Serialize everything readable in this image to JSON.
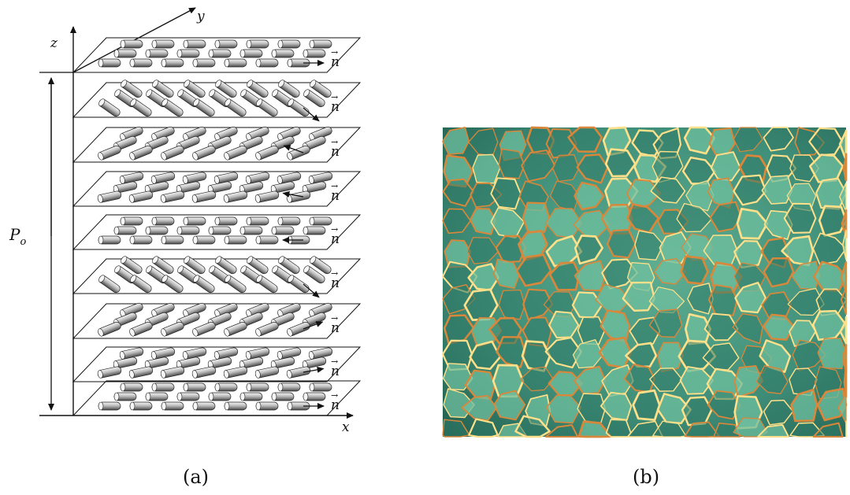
{
  "figure": {
    "panel_a": {
      "caption": "(a)",
      "axis_x": "x",
      "axis_y": "y",
      "axis_z": "z",
      "pitch_label": "P",
      "pitch_subscript": "o",
      "director_label": "n",
      "director_accent": "→",
      "layer_count": 9
    },
    "panel_b": {
      "caption": "(b)",
      "image_kind": "micrograph",
      "colors": {
        "domain_light": "#6fbf9f",
        "domain_dark": "#2f7a68",
        "boundary_bright": "#ffe08a",
        "boundary_warm": "#d9873a"
      }
    },
    "colors": {
      "line": "#111111",
      "rod_light": "#f2f2f2",
      "rod_dark": "#555555"
    }
  }
}
